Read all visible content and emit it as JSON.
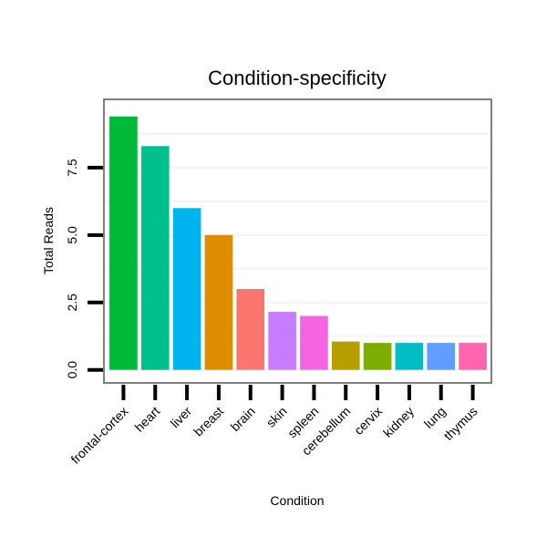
{
  "chart_data": {
    "type": "bar",
    "title": "Condition-specificity",
    "xlabel": "Condition",
    "ylabel": "Total Reads",
    "categories": [
      "frontal-cortex",
      "heart",
      "liver",
      "breast",
      "brain",
      "skin",
      "spleen",
      "cerebellum",
      "cervix",
      "kidney",
      "lung",
      "thymus"
    ],
    "values": [
      9.4,
      8.3,
      6.0,
      5.0,
      3.0,
      2.15,
      2.0,
      1.05,
      1.0,
      1.0,
      1.0,
      1.0
    ],
    "colors": [
      "#00ba38",
      "#00c08b",
      "#00b4ef",
      "#de8c00",
      "#f8766d",
      "#c77cff",
      "#f564e3",
      "#b79f00",
      "#7cae00",
      "#00bfc4",
      "#619cff",
      "#ff64b0"
    ],
    "yticks": [
      0,
      2.5,
      5,
      7.5
    ],
    "ytick_labels": [
      "0.0",
      "2.5",
      "5.0",
      "7.5"
    ],
    "ylim": [
      -0.45,
      10.0
    ],
    "grid": true,
    "legend": "none"
  }
}
